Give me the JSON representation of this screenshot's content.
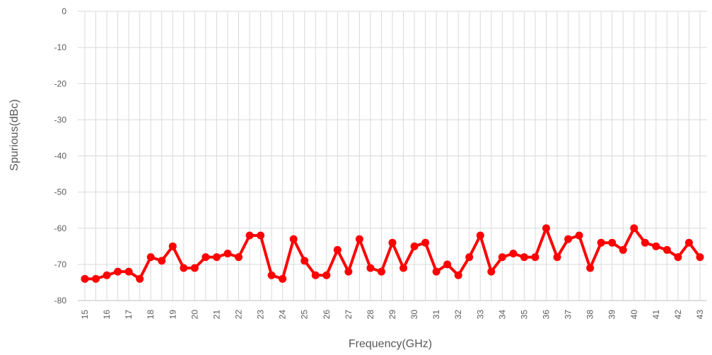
{
  "chart_data": {
    "type": "line",
    "title": "",
    "xlabel": "Frequency(GHz)",
    "ylabel": "Spurious(dBc)",
    "ylim": [
      -80,
      0
    ],
    "yticks": [
      0,
      -10,
      -20,
      -30,
      -40,
      -50,
      -60,
      -70,
      -80
    ],
    "x_tick_labels": [
      "15",
      "16",
      "17",
      "18",
      "19",
      "20",
      "21",
      "22",
      "23",
      "24",
      "25",
      "26",
      "27",
      "28",
      "29",
      "30",
      "31",
      "32",
      "33",
      "34",
      "35",
      "36",
      "37",
      "38",
      "39",
      "40",
      "41",
      "42",
      "43"
    ],
    "x": [
      15,
      15.5,
      16,
      16.5,
      17,
      17.5,
      18,
      18.5,
      19,
      19.5,
      20,
      20.5,
      21,
      21.5,
      22,
      22.5,
      23,
      23.5,
      24,
      24.5,
      25,
      25.5,
      26,
      26.5,
      27,
      27.5,
      28,
      28.5,
      29,
      29.5,
      30,
      30.5,
      31,
      31.5,
      32,
      32.5,
      33,
      33.5,
      34,
      34.5,
      35,
      35.5,
      36,
      36.5,
      37,
      37.5,
      38,
      38.5,
      39,
      39.5,
      40,
      40.5,
      41,
      41.5,
      42,
      42.5,
      43
    ],
    "series": [
      {
        "values": [
          -74,
          -74,
          -73,
          -72,
          -72,
          -74,
          -68,
          -69,
          -65,
          -71,
          -71,
          -68,
          -68,
          -67,
          -68,
          -62,
          -62,
          -73,
          -74,
          -63,
          -69,
          -73,
          -73,
          -66,
          -72,
          -63,
          -71,
          -72,
          -64,
          -71,
          -65,
          -64,
          -72,
          -70,
          -73,
          -68,
          -62,
          -72,
          -68,
          -67,
          -68,
          -68,
          -60,
          -68,
          -63,
          -62,
          -71,
          -64,
          -64,
          -66,
          -60,
          -64,
          -65,
          -66,
          -68,
          -64,
          -68
        ],
        "color": "#ff0000"
      }
    ],
    "grid": true,
    "legend": "none"
  }
}
